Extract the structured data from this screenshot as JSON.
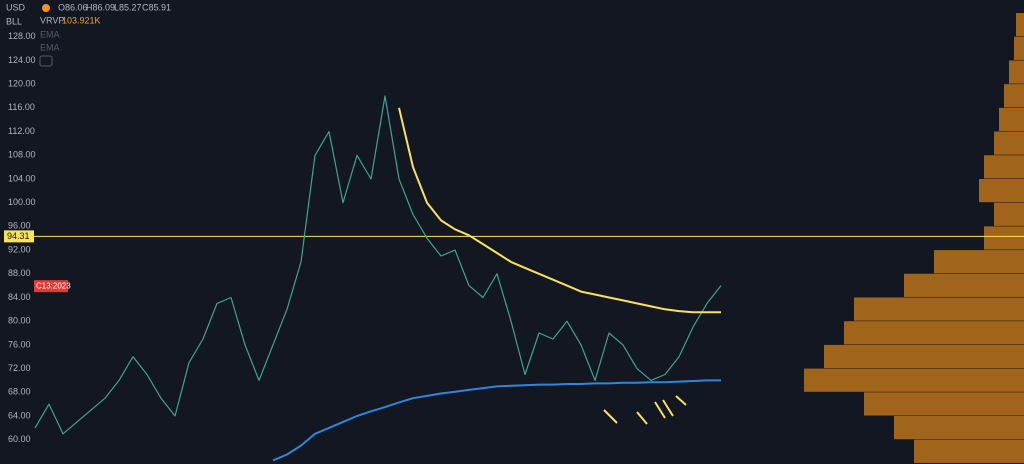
{
  "header": {
    "currency": "USD",
    "symbol": "BLL",
    "ohlc": [
      "O86.06",
      "H86.09",
      "L85.27",
      "C85.91"
    ],
    "indicator": "VRVP",
    "indicator_value": "103.921K",
    "ema_1": "EMA",
    "ema_2": "EMA"
  },
  "chart_data": {
    "type": "line",
    "log_scale": false,
    "grid": false,
    "ylim": [
      55.9,
      134.2
    ],
    "yticks": [
      {
        "value": 60,
        "label": "60.00"
      },
      {
        "value": 64,
        "label": "64.00"
      },
      {
        "value": 68,
        "label": "68.00"
      },
      {
        "value": 72,
        "label": "72.00"
      },
      {
        "value": 76,
        "label": "76.00"
      },
      {
        "value": 80,
        "label": "80.00"
      },
      {
        "value": 84,
        "label": "84.00"
      },
      {
        "value": 88,
        "label": "88.00"
      },
      {
        "value": 92,
        "label": "92.00"
      },
      {
        "value": 96,
        "label": "96.00"
      },
      {
        "value": 100,
        "label": "100.00"
      },
      {
        "value": 104,
        "label": "104.00"
      },
      {
        "value": 108,
        "label": "108.00"
      },
      {
        "value": 112,
        "label": "112.00"
      },
      {
        "value": 116,
        "label": "116.00"
      },
      {
        "value": 120,
        "label": "120.00"
      },
      {
        "value": 124,
        "label": "124.00"
      },
      {
        "value": 128,
        "label": "128.00"
      }
    ],
    "series": [
      {
        "color": "#3fa38f",
        "values": [
          62,
          66,
          61,
          63,
          65,
          67,
          70,
          74,
          71,
          67,
          64,
          73,
          77,
          83,
          84,
          76,
          70,
          76,
          82,
          90,
          108,
          112,
          100,
          108,
          104,
          118,
          104,
          98,
          94,
          91,
          92,
          86,
          84,
          88,
          80,
          71,
          78,
          77,
          80,
          76,
          70,
          78,
          76,
          72,
          70,
          71,
          74,
          79,
          83,
          86
        ]
      },
      {
        "color": "#f7e35c",
        "values": [
          null,
          null,
          null,
          null,
          null,
          null,
          null,
          null,
          null,
          null,
          null,
          null,
          null,
          null,
          null,
          null,
          null,
          null,
          null,
          null,
          null,
          null,
          null,
          null,
          null,
          null,
          116,
          106,
          100,
          97,
          95.5,
          94.5,
          93,
          91.5,
          90,
          89,
          88,
          87,
          86,
          85,
          84.5,
          84,
          83.5,
          83,
          82.5,
          82,
          81.7,
          81.5,
          81.5,
          81.5
        ]
      },
      {
        "color": "#2e86de",
        "values": [
          null,
          null,
          null,
          null,
          null,
          null,
          null,
          null,
          null,
          null,
          null,
          null,
          null,
          null,
          null,
          null,
          null,
          56.5,
          57.5,
          59,
          61,
          62,
          63,
          64,
          64.8,
          65.5,
          66.3,
          67,
          67.4,
          67.8,
          68.1,
          68.4,
          68.7,
          69,
          69.1,
          69.2,
          69.3,
          69.3,
          69.4,
          69.4,
          69.5,
          69.5,
          69.6,
          69.6,
          69.7,
          69.7,
          69.8,
          69.9,
          70,
          70
        ]
      }
    ],
    "level": {
      "value": 94.31,
      "label": "94.31",
      "color": "#f7e35c"
    },
    "price_tag": {
      "value": 85.91,
      "label": "C13:2023",
      "color": "#e53935"
    },
    "volume_profile": {
      "color": "#a0651a",
      "xlim": [
        0,
        240
      ],
      "bins": [
        56,
        60,
        64,
        68,
        72,
        76,
        80,
        84,
        88,
        92,
        96,
        100,
        104,
        108,
        112,
        116,
        120,
        124,
        128,
        132
      ],
      "values": [
        110,
        130,
        160,
        220,
        200,
        180,
        170,
        120,
        90,
        40,
        30,
        45,
        40,
        30,
        25,
        20,
        15,
        10,
        8
      ]
    }
  }
}
